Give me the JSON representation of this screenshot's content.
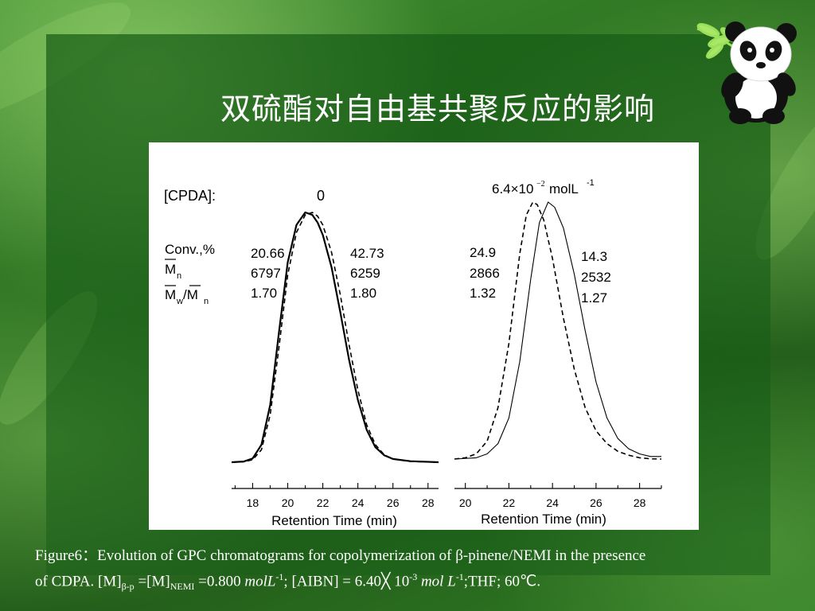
{
  "slide": {
    "title": "双硫酯对自由基共聚反应的影响"
  },
  "caption": {
    "line1": "Figure6：Evolution of GPC chromatograms for copolymerization of β-pinene/NEMI in the presence",
    "l2_a": " of CDPA.  [M]",
    "l2_sub1": "β-p",
    "l2_b": " =[M]",
    "l2_sub2": "NEMI",
    "l2_c": " =0.800 ",
    "l2_unit1": "molL",
    "l2_sup1": "-1",
    "l2_d": "; [AIBN] = 6.40╳ 10",
    "l2_sup2": "-3",
    "l2_e": " ",
    "l2_unit2": "mol L",
    "l2_sup3": "-1",
    "l2_f": ";THF; 60℃."
  },
  "colors": {
    "background": "#2a6e1f",
    "title_text": "#ffffff",
    "figure_bg": "#ffffff",
    "curve": "#000000"
  },
  "chart_data": [
    {
      "type": "line",
      "xlabel": "Retention Time (min)",
      "xlim": [
        16.8,
        28.6
      ],
      "ticks": [
        18,
        20,
        22,
        24,
        26,
        28
      ],
      "condition_label": "[CPDA]:",
      "condition_value": "0",
      "row_labels": [
        "Conv.,%",
        "M",
        "n",
        "M",
        "w",
        "/M",
        "n"
      ],
      "series": [
        {
          "style": "dashed",
          "stats": [
            "20.66",
            "6797",
            "1.70"
          ],
          "x": [
            16.8,
            17.5,
            18.0,
            18.5,
            19.0,
            19.5,
            20.0,
            20.5,
            21.0,
            21.4,
            21.7,
            22.0,
            22.5,
            23.0,
            23.5,
            24.0,
            24.5,
            25.0,
            25.5,
            26.0,
            27.0,
            28.6
          ],
          "y": [
            0,
            0.002,
            0.01,
            0.05,
            0.19,
            0.46,
            0.75,
            0.92,
            0.99,
            1.0,
            0.985,
            0.95,
            0.84,
            0.67,
            0.47,
            0.29,
            0.15,
            0.07,
            0.03,
            0.013,
            0.003,
            0
          ]
        },
        {
          "style": "solid",
          "stats": [
            "42.73",
            "6259",
            "1.80"
          ],
          "x": [
            16.8,
            17.5,
            18.0,
            18.5,
            19.0,
            19.5,
            20.0,
            20.5,
            21.0,
            21.4,
            21.7,
            22.0,
            22.5,
            23.0,
            23.5,
            24.0,
            24.5,
            25.0,
            25.5,
            26.0,
            27.0,
            28.6
          ],
          "y": [
            0,
            0.003,
            0.015,
            0.07,
            0.23,
            0.52,
            0.8,
            0.95,
            1.0,
            0.99,
            0.96,
            0.91,
            0.78,
            0.6,
            0.41,
            0.25,
            0.13,
            0.06,
            0.028,
            0.013,
            0.004,
            0
          ]
        }
      ]
    },
    {
      "type": "line",
      "xlabel": "Retention Time (min)",
      "xlim": [
        19.5,
        29.0
      ],
      "ticks": [
        20,
        22,
        24,
        26,
        28
      ],
      "condition_value": "6.4×10",
      "condition_exp": "−2",
      "condition_unit": "molL",
      "condition_unit_exp": "-1",
      "series": [
        {
          "style": "dashed",
          "stats": [
            "24.9",
            "2866",
            "1.32"
          ],
          "x": [
            19.5,
            20.0,
            20.5,
            21.0,
            21.5,
            22.0,
            22.5,
            22.8,
            23.1,
            23.3,
            23.6,
            24.0,
            24.5,
            25.0,
            25.5,
            26.0,
            26.5,
            27.0,
            27.5,
            28.0,
            28.5,
            29.0
          ],
          "y": [
            0,
            0.005,
            0.02,
            0.07,
            0.2,
            0.45,
            0.8,
            0.95,
            1.0,
            0.99,
            0.93,
            0.78,
            0.55,
            0.35,
            0.2,
            0.11,
            0.06,
            0.03,
            0.015,
            0.005,
            0.001,
            0
          ]
        },
        {
          "style": "solid",
          "stats": [
            "14.3",
            "2532",
            "1.27"
          ],
          "x": [
            19.5,
            20.5,
            21.0,
            21.5,
            22.0,
            22.5,
            23.0,
            23.4,
            23.8,
            24.1,
            24.5,
            25.0,
            25.5,
            26.0,
            26.5,
            27.0,
            27.5,
            28.0,
            28.5,
            29.0
          ],
          "y": [
            0,
            0.005,
            0.02,
            0.06,
            0.16,
            0.38,
            0.7,
            0.92,
            1.0,
            0.98,
            0.9,
            0.72,
            0.5,
            0.3,
            0.16,
            0.08,
            0.04,
            0.02,
            0.01,
            0.01
          ]
        }
      ]
    }
  ]
}
